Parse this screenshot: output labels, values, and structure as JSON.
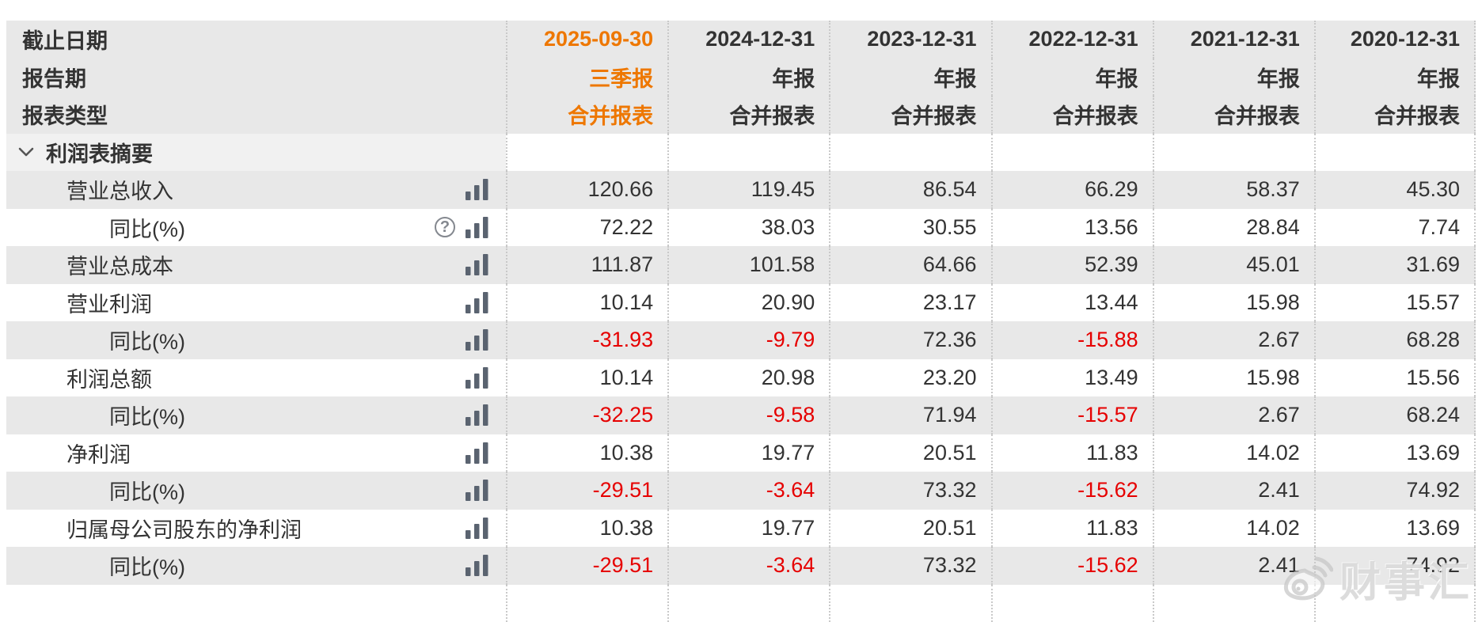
{
  "colors": {
    "accent_orange": "#ee7700",
    "negative_red": "#e60000",
    "row_gray": "#e8e8e8",
    "section_label_gray": "#f1f1f1",
    "divider_dot_gray": "#c9c9c9",
    "text_dark": "#333333",
    "icon_slate": "#5a6370"
  },
  "header": {
    "label_rows": [
      {
        "label": "截止日期",
        "values": [
          "2025-09-30",
          "2024-12-31",
          "2023-12-31",
          "2022-12-31",
          "2021-12-31",
          "2020-12-31"
        ]
      },
      {
        "label": "报告期",
        "values": [
          "三季报",
          "年报",
          "年报",
          "年报",
          "年报",
          "年报"
        ]
      },
      {
        "label": "报表类型",
        "values": [
          "合并报表",
          "合并报表",
          "合并报表",
          "合并报表",
          "合并报表",
          "合并报表"
        ]
      }
    ],
    "highlighted_column_index": 0
  },
  "section": {
    "title": "利润表摘要"
  },
  "table": {
    "rows": [
      {
        "label": "营业总收入",
        "indent": 1,
        "help": false,
        "values": [
          "120.66",
          "119.45",
          "86.54",
          "66.29",
          "58.37",
          "45.30"
        ]
      },
      {
        "label": "同比(%)",
        "indent": 2,
        "help": true,
        "values": [
          "72.22",
          "38.03",
          "30.55",
          "13.56",
          "28.84",
          "7.74"
        ]
      },
      {
        "label": "营业总成本",
        "indent": 1,
        "help": false,
        "values": [
          "111.87",
          "101.58",
          "64.66",
          "52.39",
          "45.01",
          "31.69"
        ]
      },
      {
        "label": "营业利润",
        "indent": 1,
        "help": false,
        "values": [
          "10.14",
          "20.90",
          "23.17",
          "13.44",
          "15.98",
          "15.57"
        ]
      },
      {
        "label": "同比(%)",
        "indent": 2,
        "help": false,
        "values": [
          "-31.93",
          "-9.79",
          "72.36",
          "-15.88",
          "2.67",
          "68.28"
        ]
      },
      {
        "label": "利润总额",
        "indent": 1,
        "help": false,
        "values": [
          "10.14",
          "20.98",
          "23.20",
          "13.49",
          "15.98",
          "15.56"
        ]
      },
      {
        "label": "同比(%)",
        "indent": 2,
        "help": false,
        "values": [
          "-32.25",
          "-9.58",
          "71.94",
          "-15.57",
          "2.67",
          "68.24"
        ]
      },
      {
        "label": "净利润",
        "indent": 1,
        "help": false,
        "values": [
          "10.38",
          "19.77",
          "20.51",
          "11.83",
          "14.02",
          "13.69"
        ]
      },
      {
        "label": "同比(%)",
        "indent": 2,
        "help": false,
        "values": [
          "-29.51",
          "-3.64",
          "73.32",
          "-15.62",
          "2.41",
          "74.92"
        ]
      },
      {
        "label": "归属母公司股东的净利润",
        "indent": 1,
        "help": false,
        "values": [
          "10.38",
          "19.77",
          "20.51",
          "11.83",
          "14.02",
          "13.69"
        ]
      },
      {
        "label": "同比(%)",
        "indent": 2,
        "help": false,
        "values": [
          "-29.51",
          "-3.64",
          "73.32",
          "-15.62",
          "2.41",
          "74.92"
        ]
      }
    ]
  },
  "icons": {
    "help_glyph": "?"
  },
  "watermark": {
    "text": "财事汇"
  }
}
